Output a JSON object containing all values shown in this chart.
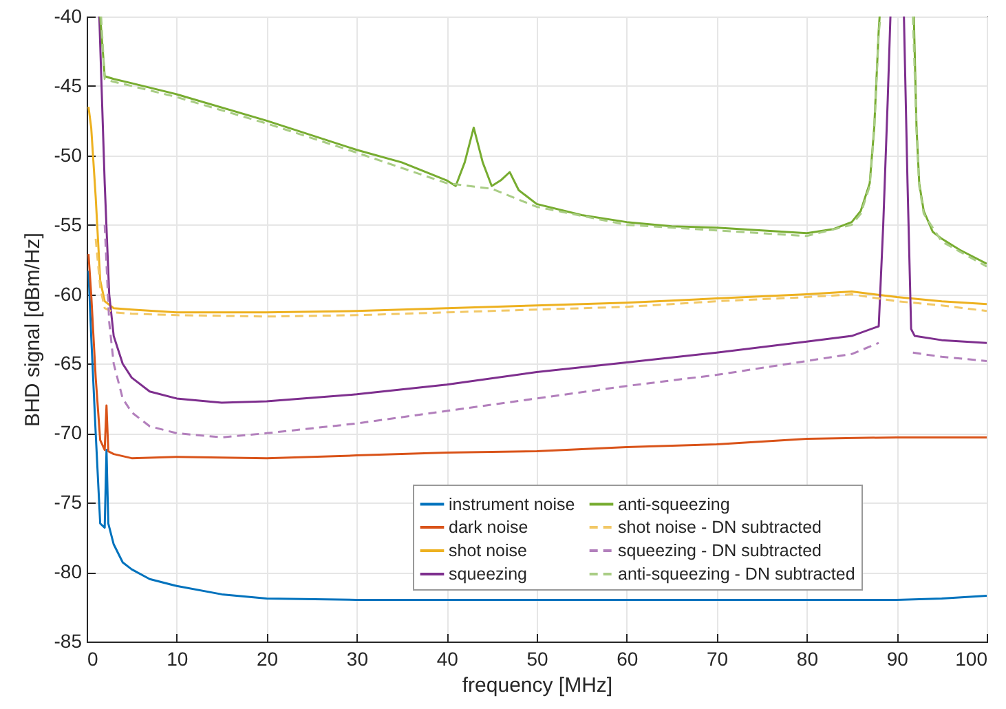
{
  "chart_data": {
    "type": "line",
    "xlabel": "frequency [MHz]",
    "ylabel": "BHD signal [dBm/Hz]",
    "xlim": [
      0,
      100
    ],
    "ylim": [
      -85,
      -40
    ],
    "xticks": [
      0,
      10,
      20,
      30,
      40,
      50,
      60,
      70,
      80,
      90,
      100
    ],
    "yticks": [
      -85,
      -80,
      -75,
      -70,
      -65,
      -60,
      -55,
      -50,
      -45,
      -40
    ],
    "grid": true,
    "legend": "bottom right",
    "series": [
      {
        "name": "instrument noise",
        "color": "#0072bd",
        "line_style": "solid",
        "x": [
          0.2,
          0.5,
          1,
          1.5,
          2,
          2.2,
          2.4,
          3,
          4,
          5,
          7,
          10,
          15,
          20,
          30,
          40,
          50,
          60,
          70,
          80,
          90,
          95,
          100
        ],
        "values": [
          -58.3,
          -63,
          -70,
          -76.5,
          -76.8,
          -71.2,
          -76.5,
          -78,
          -79.3,
          -79.8,
          -80.5,
          -81,
          -81.6,
          -81.9,
          -82,
          -82,
          -82,
          -82,
          -82,
          -82,
          -82,
          -81.9,
          -81.7
        ]
      },
      {
        "name": "dark noise",
        "color": "#d95319",
        "line_style": "solid",
        "x": [
          0.2,
          0.5,
          1,
          1.5,
          2,
          2.2,
          2.4,
          3,
          5,
          10,
          20,
          30,
          40,
          50,
          60,
          70,
          80,
          90,
          100
        ],
        "values": [
          -57.1,
          -60,
          -66,
          -70.5,
          -71.2,
          -68,
          -71.3,
          -71.5,
          -71.8,
          -71.7,
          -71.8,
          -71.6,
          -71.4,
          -71.3,
          -71,
          -70.8,
          -70.4,
          -70.3,
          -70.3
        ]
      },
      {
        "name": "shot noise",
        "color": "#edb120",
        "line_style": "solid",
        "x": [
          0.2,
          0.5,
          1,
          1.5,
          2,
          3,
          5,
          10,
          20,
          30,
          40,
          50,
          60,
          70,
          80,
          85,
          90,
          95,
          100
        ],
        "values": [
          -46.5,
          -48,
          -53,
          -59,
          -60.5,
          -61,
          -61.1,
          -61.3,
          -61.3,
          -61.2,
          -61,
          -60.8,
          -60.6,
          -60.3,
          -60,
          -59.8,
          -60.2,
          -60.5,
          -60.7
        ]
      },
      {
        "name": "squeezing",
        "color": "#7e2f8e",
        "line_style": "solid",
        "x": [
          1.4,
          2,
          2.5,
          3,
          4,
          5,
          7,
          10,
          15,
          20,
          30,
          40,
          50,
          60,
          70,
          80,
          85,
          88,
          88.5,
          89,
          89.3,
          89.5,
          90.5,
          90.8,
          91.2,
          91.6,
          92,
          95,
          100
        ],
        "values": [
          -40,
          -52,
          -60,
          -63,
          -65,
          -66,
          -67,
          -67.5,
          -67.8,
          -67.7,
          -67.2,
          -66.5,
          -65.6,
          -64.9,
          -64.2,
          -63.4,
          -63,
          -62.3,
          -55,
          -46,
          -40,
          null,
          null,
          -40,
          -52,
          -62.5,
          -63,
          -63.3,
          -63.5
        ]
      },
      {
        "name": "anti-squeezing",
        "color": "#77ac30",
        "line_style": "solid",
        "x": [
          1.5,
          2,
          3,
          5,
          10,
          20,
          30,
          35,
          40,
          41,
          42,
          43,
          44,
          45,
          46,
          47,
          48,
          50,
          55,
          60,
          65,
          70,
          75,
          80,
          83,
          85,
          86,
          87,
          87.5,
          88,
          88.1,
          88.5,
          91.5,
          91.9,
          92.2,
          92.5,
          93,
          94,
          95,
          97,
          100
        ],
        "values": [
          -40,
          -44.3,
          -44.5,
          -44.8,
          -45.6,
          -47.5,
          -49.6,
          -50.5,
          -51.8,
          -52.2,
          -50.5,
          -48,
          -50.5,
          -52.2,
          -51.8,
          -51.2,
          -52.5,
          -53.5,
          -54.3,
          -54.8,
          -55.1,
          -55.2,
          -55.4,
          -55.6,
          -55.3,
          -54.8,
          -54,
          -52,
          -48,
          -41,
          -40,
          null,
          null,
          -40,
          -48,
          -52,
          -54,
          -55.5,
          -56,
          -56.8,
          -57.8
        ]
      },
      {
        "name": "shot noise - DN subtracted",
        "color": "#f2c866",
        "line_style": "dashed",
        "x": [
          1,
          1.5,
          2,
          3,
          5,
          10,
          20,
          30,
          40,
          50,
          60,
          70,
          80,
          85,
          90,
          95,
          100
        ],
        "values": [
          -56,
          -59.5,
          -61,
          -61.3,
          -61.4,
          -61.5,
          -61.6,
          -61.5,
          -61.3,
          -61.1,
          -60.9,
          -60.5,
          -60.2,
          -60,
          -60.5,
          -60.8,
          -61.2
        ]
      },
      {
        "name": "squeezing - DN subtracted",
        "color": "#b27fbc",
        "line_style": "dashed",
        "x": [
          2,
          2.5,
          3,
          4,
          5,
          7,
          10,
          15,
          20,
          30,
          40,
          50,
          60,
          70,
          80,
          85,
          88,
          88.5,
          91.5,
          91.8,
          95,
          100
        ],
        "values": [
          -55,
          -62,
          -65,
          -67.5,
          -68.5,
          -69.5,
          -70,
          -70.3,
          -70,
          -69.3,
          -68.4,
          -67.5,
          -66.6,
          -65.8,
          -64.8,
          -64.3,
          -63.5,
          null,
          null,
          -64.2,
          -64.5,
          -64.8
        ]
      },
      {
        "name": "anti-squeezing - DN subtracted",
        "color": "#a9cd85",
        "line_style": "dashed",
        "x": [
          1.6,
          2,
          3,
          5,
          10,
          20,
          30,
          40,
          45,
          50,
          60,
          70,
          80,
          85,
          86,
          87,
          87.5,
          88,
          88.2,
          88.5,
          91.5,
          91.8,
          92.2,
          92.5,
          93,
          95,
          100
        ],
        "values": [
          -40,
          -44.5,
          -44.7,
          -45,
          -45.8,
          -47.7,
          -49.8,
          -52,
          -52.4,
          -53.7,
          -55,
          -55.4,
          -55.8,
          -55,
          -54.2,
          -52.2,
          -48.2,
          -41.2,
          -40,
          null,
          null,
          -40,
          -48.2,
          -52.2,
          -54.2,
          -56.2,
          -58
        ]
      }
    ]
  }
}
